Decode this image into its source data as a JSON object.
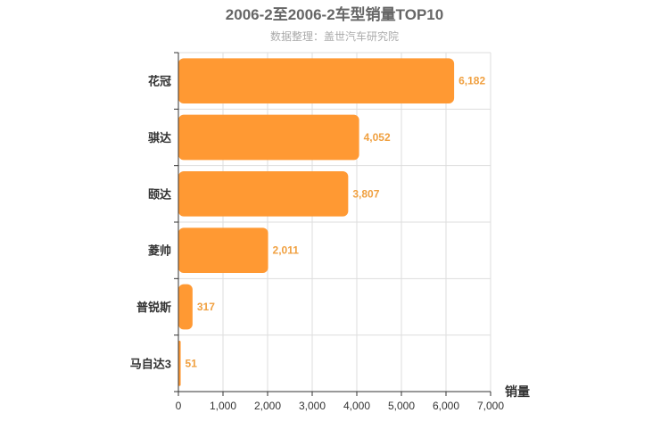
{
  "chart_data": {
    "type": "bar",
    "orientation": "horizontal",
    "title": "2006-2至2006-2车型销量TOP10",
    "subtitle": "数据整理：盖世汽车研究院",
    "categories": [
      "花冠",
      "骐达",
      "颐达",
      "菱帅",
      "普锐斯",
      "马自达3"
    ],
    "values": [
      6182,
      4052,
      3807,
      2011,
      317,
      51
    ],
    "value_labels": [
      "6,182",
      "4,052",
      "3,807",
      "2,011",
      "317",
      "51"
    ],
    "xlabel": "销量",
    "ylabel": "",
    "xlim": [
      0,
      7000
    ],
    "x_ticks": [
      "0",
      "1,000",
      "2,000",
      "3,000",
      "4,000",
      "5,000",
      "6,000",
      "7,000"
    ],
    "x_tick_values": [
      0,
      1000,
      2000,
      3000,
      4000,
      5000,
      6000,
      7000
    ],
    "grid": true,
    "bar_color": "#ff9933",
    "label_color": "#f0a040",
    "grid_color": "#dddddd"
  }
}
